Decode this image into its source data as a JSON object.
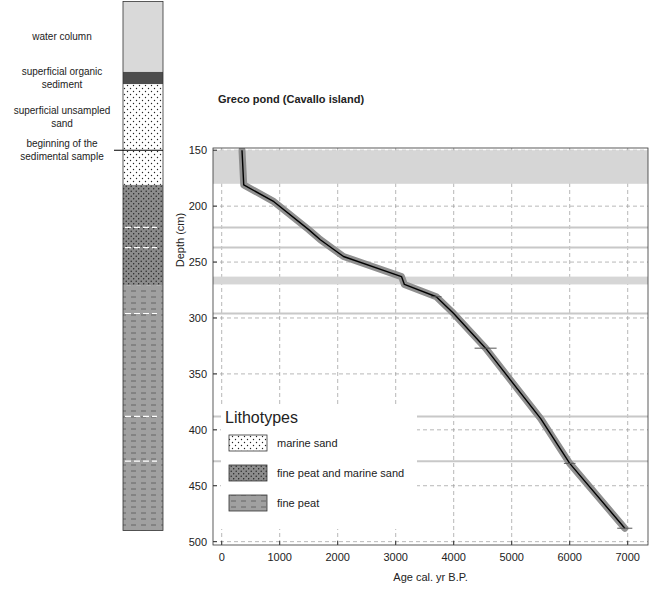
{
  "chart_data": {
    "type": "line",
    "title": "Greco pond (Cavallo island)",
    "x_label": "Age cal. yr B.P.",
    "y_label": "Depth (cm)",
    "x": [
      350,
      380,
      900,
      1500,
      1700,
      2100,
      3100,
      3150,
      3700,
      4000,
      4550,
      5500,
      6000,
      6950
    ],
    "values": [
      150,
      181,
      196,
      221,
      230,
      245,
      263,
      270,
      281,
      296,
      327,
      390,
      430,
      488
    ],
    "x_errors": [
      null,
      null,
      null,
      null,
      null,
      null,
      null,
      null,
      90,
      null,
      190,
      null,
      100,
      130
    ],
    "color": "#000000",
    "xlim": [
      -150,
      7350
    ],
    "xticks": [
      0,
      1000,
      2000,
      3000,
      4000,
      5000,
      6000,
      7000
    ],
    "ylim": [
      148,
      503
    ],
    "yticks": [
      150,
      200,
      250,
      300,
      350,
      400,
      450,
      500
    ],
    "grid": true,
    "bands": [
      [
        150,
        180
      ],
      [
        263,
        270
      ]
    ],
    "horizons": [
      219,
      237,
      296,
      388,
      428
    ],
    "legend": "lower left",
    "legend_title": "Lithotypes",
    "lithotypes": [
      {
        "label": "marine sand",
        "fill": "marine_sand"
      },
      {
        "label": "fine peat and marine sand",
        "fill": "peat_sand"
      },
      {
        "label": "fine peat",
        "fill": "fine_peat"
      }
    ]
  },
  "column": {
    "layers": [
      {
        "label": "water column",
        "top": 17,
        "bottom": 80,
        "fill": "water"
      },
      {
        "label": "superficial organic sediment",
        "top": 80,
        "bottom": 91,
        "fill": "organic"
      },
      {
        "label": "superficial unsampled sand",
        "top": 91,
        "bottom": 150,
        "fill": "marine_sand"
      },
      {
        "top": 150,
        "bottom": 181,
        "fill": "marine_sand"
      },
      {
        "top": 181,
        "bottom": 271,
        "fill": "peat_sand"
      },
      {
        "top": 271,
        "bottom": 490,
        "fill": "fine_peat"
      }
    ],
    "marker": {
      "label": "beginning of the sedimental sample",
      "depth": 150
    }
  }
}
